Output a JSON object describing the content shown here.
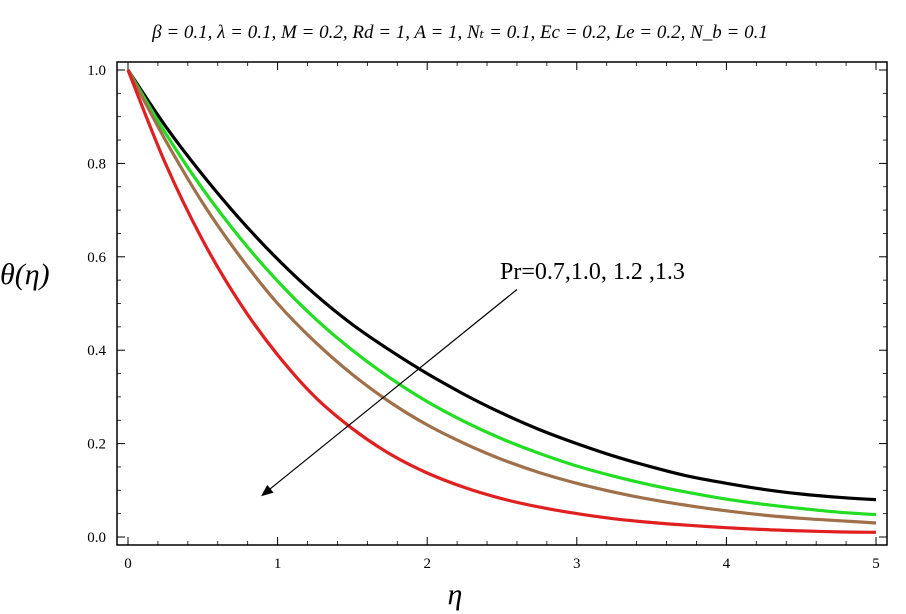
{
  "chart_data": {
    "type": "line",
    "title": "β = 0.1, λ = 0.1, M = 0.2, Rd = 1, A = 1, Nₜ = 0.1, Ec = 0.2, Le = 0.2, N_b = 0.1",
    "xlabel": "η",
    "ylabel": "θ(η)",
    "xlim": [
      0,
      5
    ],
    "ylim": [
      0,
      1
    ],
    "x_ticks": [
      "0",
      "1",
      "2",
      "3",
      "4",
      "5"
    ],
    "y_ticks": [
      "0.0",
      "0.2",
      "0.4",
      "0.6",
      "0.8",
      "1.0"
    ],
    "grid": false,
    "x": [
      0,
      0.25,
      0.5,
      0.75,
      1,
      1.25,
      1.5,
      1.75,
      2,
      2.25,
      2.5,
      2.75,
      3,
      3.25,
      3.5,
      3.75,
      4,
      4.25,
      4.5,
      4.75,
      5
    ],
    "series": [
      {
        "color": "#000000",
        "values": [
          1.0,
          0.88,
          0.775,
          0.68,
          0.595,
          0.52,
          0.455,
          0.4,
          0.35,
          0.305,
          0.265,
          0.23,
          0.2,
          0.173,
          0.15,
          0.13,
          0.115,
          0.102,
          0.092,
          0.085,
          0.08
        ]
      },
      {
        "color": "#22dd22",
        "values": [
          1.0,
          0.865,
          0.745,
          0.64,
          0.548,
          0.468,
          0.4,
          0.341,
          0.29,
          0.247,
          0.21,
          0.179,
          0.152,
          0.13,
          0.111,
          0.095,
          0.081,
          0.07,
          0.061,
          0.053,
          0.048
        ]
      },
      {
        "color": "#a0704a",
        "values": [
          1.0,
          0.85,
          0.715,
          0.6,
          0.5,
          0.418,
          0.348,
          0.289,
          0.24,
          0.2,
          0.166,
          0.138,
          0.115,
          0.096,
          0.08,
          0.067,
          0.056,
          0.047,
          0.04,
          0.035,
          0.03
        ]
      },
      {
        "color": "#e02020",
        "values": [
          1.0,
          0.8,
          0.635,
          0.5,
          0.39,
          0.3,
          0.232,
          0.178,
          0.137,
          0.106,
          0.082,
          0.064,
          0.05,
          0.039,
          0.031,
          0.025,
          0.02,
          0.016,
          0.013,
          0.011,
          0.01
        ]
      }
    ],
    "annotation": {
      "text": "Pr=0.7,1.0, 1.2 ,1.3",
      "arrow_from": [
        2.6,
        0.53
      ],
      "arrow_to": [
        0.9,
        0.09
      ]
    }
  }
}
